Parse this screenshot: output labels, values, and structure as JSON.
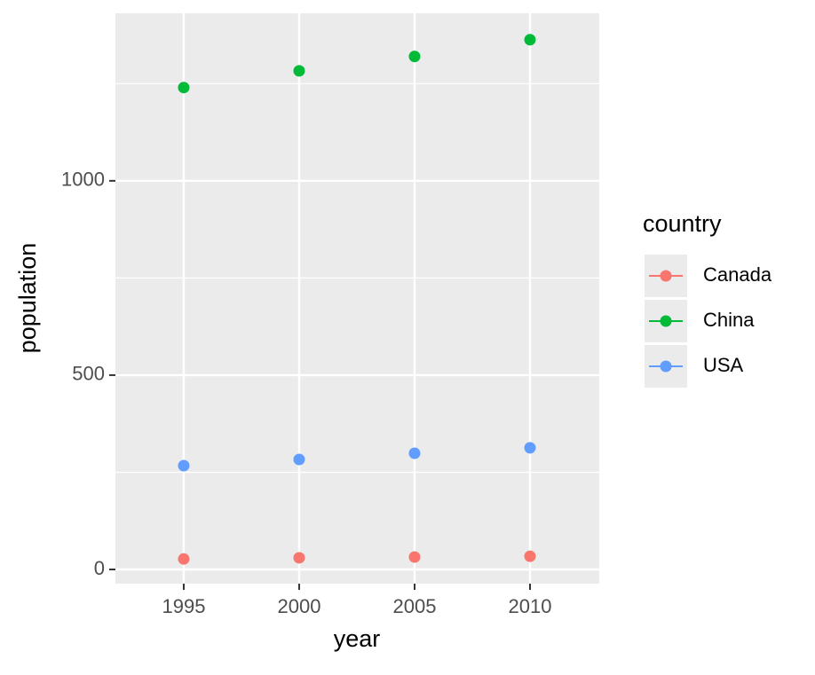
{
  "chart_data": {
    "type": "scatter",
    "x_label": "year",
    "y_label": "population",
    "legend_title": "country",
    "legend_position": "right",
    "x": [
      1995,
      2000,
      2005,
      2010
    ],
    "series": [
      {
        "name": "Canada",
        "color": "#F8766D",
        "values": [
          27,
          30,
          32,
          34
        ]
      },
      {
        "name": "China",
        "color": "#00BA38",
        "values": [
          1240,
          1283,
          1320,
          1363
        ]
      },
      {
        "name": "USA",
        "color": "#619CFF",
        "values": [
          267,
          283,
          299,
          313
        ]
      }
    ],
    "xlim": [
      1992.04,
      2013
    ],
    "ylim": [
      -36.5,
      1431
    ],
    "xticks": [
      1995,
      2000,
      2005,
      2010
    ],
    "yticks": [
      0,
      500,
      1000
    ],
    "y_minor_ticks": [
      250,
      750,
      1250
    ],
    "grid": true
  }
}
